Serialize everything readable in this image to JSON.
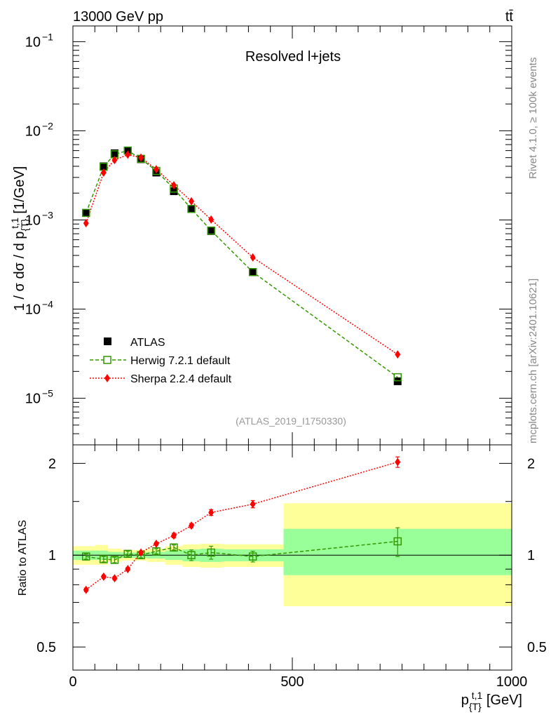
{
  "header": {
    "energy_label": "13000 GeV pp",
    "process_label": "tt̄"
  },
  "side_labels": {
    "rivet": "Rivet 4.1.0, ≥ 100k events",
    "mcplots": "mcplots.cern.ch [arXiv:2401.10621]"
  },
  "colors": {
    "data": "#000000",
    "herwig": "#339900",
    "sherpa": "#ff0000",
    "band_inner": "#99ff99",
    "band_outer": "#ffff99",
    "watermark": "#999999"
  },
  "chart_data": [
    {
      "type": "scatter",
      "role": "main",
      "title": "Resolved l+jets",
      "watermark": "(ATLAS_2019_I1750330)",
      "ylabel": "1 / σ dσ / d p_T^{t,1} [1/GeV]",
      "yscale": "log",
      "xlim": [
        0,
        1000
      ],
      "ylim": [
        3e-06,
        0.15
      ],
      "yticks": [
        {
          "value": 1e-05,
          "label": "10",
          "exp": "−5"
        },
        {
          "value": 0.0001,
          "label": "10",
          "exp": "−4"
        },
        {
          "value": 0.001,
          "label": "10",
          "exp": "−3"
        },
        {
          "value": 0.01,
          "label": "10",
          "exp": "−2"
        },
        {
          "value": 0.1,
          "label": "10",
          "exp": "−1"
        }
      ],
      "legend": {
        "position": "bottom-left",
        "entries": [
          "ATLAS",
          "Herwig 7.2.1 default",
          "Sherpa 2.2.4 default"
        ]
      },
      "series": [
        {
          "name": "ATLAS",
          "x": [
            30,
            70,
            95,
            125,
            155,
            190,
            230,
            270,
            315,
            410,
            740
          ],
          "y": [
            0.0012,
            0.004,
            0.0056,
            0.006,
            0.0048,
            0.0034,
            0.0021,
            0.00133,
            0.00075,
            0.00026,
            1.55e-05
          ]
        },
        {
          "name": "Herwig 7.2.1 default",
          "x": [
            30,
            70,
            95,
            125,
            155,
            190,
            230,
            270,
            315,
            410,
            740
          ],
          "y": [
            0.0012,
            0.00395,
            0.00545,
            0.006,
            0.00485,
            0.00355,
            0.00225,
            0.00133,
            0.00076,
            0.00026,
            1.72e-05
          ]
        },
        {
          "name": "Sherpa 2.2.4 default",
          "x": [
            30,
            70,
            95,
            125,
            155,
            190,
            230,
            270,
            315,
            410,
            740
          ],
          "y": [
            0.00092,
            0.0034,
            0.0047,
            0.0054,
            0.005,
            0.0037,
            0.00245,
            0.00162,
            0.00101,
            0.00038,
            3.1e-05
          ]
        }
      ]
    },
    {
      "type": "scatter",
      "role": "ratio",
      "ylabel": "Ratio to ATLAS",
      "xlabel": "p_T^{t,1} [GeV]",
      "xlim": [
        0,
        1000
      ],
      "ylim": [
        0.42,
        2.3
      ],
      "yscale": "log",
      "xticks": [
        {
          "value": 0,
          "label": "0"
        },
        {
          "value": 500,
          "label": "500"
        },
        {
          "value": 1000,
          "label": "1000"
        }
      ],
      "yticks": [
        {
          "value": 0.5,
          "label": "0.5"
        },
        {
          "value": 1,
          "label": "1"
        },
        {
          "value": 2,
          "label": "2"
        }
      ],
      "uncertainty_bands": {
        "bin_edges": [
          0,
          50,
          80,
          110,
          140,
          170,
          210,
          250,
          290,
          340,
          480,
          1000
        ],
        "inner_lo": [
          0.965,
          0.965,
          0.975,
          0.98,
          0.98,
          0.975,
          0.965,
          0.955,
          0.95,
          0.955,
          0.86
        ],
        "inner_hi": [
          1.035,
          1.035,
          1.025,
          1.02,
          1.02,
          1.025,
          1.035,
          1.045,
          1.05,
          1.045,
          1.22
        ],
        "outer_lo": [
          0.93,
          0.93,
          0.95,
          0.96,
          0.96,
          0.95,
          0.93,
          0.915,
          0.91,
          0.915,
          0.68
        ],
        "outer_hi": [
          1.07,
          1.08,
          1.05,
          1.04,
          1.04,
          1.05,
          1.07,
          1.085,
          1.09,
          1.085,
          1.48
        ]
      },
      "series": [
        {
          "name": "Herwig 7.2.1 default",
          "x": [
            30,
            70,
            95,
            125,
            155,
            190,
            230,
            270,
            315,
            410,
            740
          ],
          "y": [
            0.99,
            0.97,
            0.965,
            1.01,
            1.0,
            1.03,
            1.06,
            1.0,
            1.02,
            0.99,
            1.11
          ],
          "err": [
            0.02,
            0.02,
            0.02,
            0.02,
            0.02,
            0.02,
            0.02,
            0.04,
            0.05,
            0.04,
            0.12
          ]
        },
        {
          "name": "Sherpa 2.2.4 default",
          "x": [
            30,
            70,
            95,
            125,
            155,
            190,
            230,
            270,
            315,
            410,
            740
          ],
          "y": [
            0.77,
            0.85,
            0.84,
            0.9,
            1.02,
            1.09,
            1.16,
            1.25,
            1.38,
            1.47,
            2.02
          ],
          "err": [
            0.01,
            0.01,
            0.01,
            0.01,
            0.01,
            0.01,
            0.02,
            0.02,
            0.03,
            0.04,
            0.08
          ]
        }
      ]
    }
  ]
}
